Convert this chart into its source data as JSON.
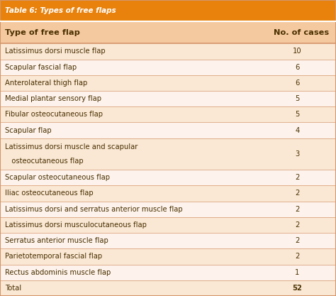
{
  "title": "Table 6: Types of free flaps",
  "title_bg": "#E8820C",
  "title_color": "#FFFFFF",
  "header": [
    "Type of free flap",
    "No. of cases"
  ],
  "header_bg": "#F5C9A0",
  "header_color": "#4A3000",
  "rows": [
    [
      "Latissimus dorsi muscle flap",
      "10"
    ],
    [
      "Scapular fascial flap",
      "6"
    ],
    [
      "Anterolateral thigh flap",
      "6"
    ],
    [
      "Medial plantar sensory flap",
      "5"
    ],
    [
      "Fibular osteocutaneous flap",
      "5"
    ],
    [
      "Scapular flap",
      "4"
    ],
    [
      "Latissimus dorsi muscle and scapular\n   osteocutaneous flap",
      "3"
    ],
    [
      "Scapular osteocutaneous flap",
      "2"
    ],
    [
      "Iliac osteocutaneous flap",
      "2"
    ],
    [
      "Latissimus dorsi and serratus anterior muscle flap",
      "2"
    ],
    [
      "Latissimus dorsi musculocutaneous flap",
      "2"
    ],
    [
      "Serratus anterior muscle flap",
      "2"
    ],
    [
      "Parietotemporal fascial flap",
      "2"
    ],
    [
      "Rectus abdominis muscle flap",
      "1"
    ],
    [
      "Total",
      "52"
    ]
  ],
  "row_bg_odd": "#FAE8D5",
  "row_bg_even": "#FDF3EC",
  "row_text_color": "#4A3000",
  "divider_color": "#D4956A",
  "outer_border_color": "#D4956A",
  "figsize": [
    4.74,
    4.17
  ],
  "dpi": 100
}
